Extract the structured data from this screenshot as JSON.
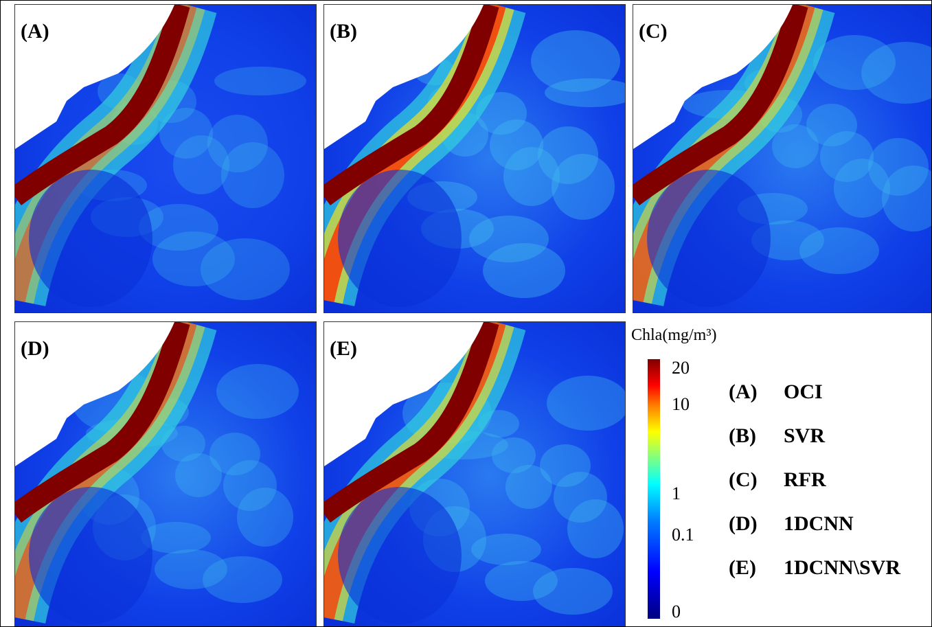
{
  "panels": [
    {
      "label": "(A)",
      "name": "OCI"
    },
    {
      "label": "(B)",
      "name": "SVR"
    },
    {
      "label": "(C)",
      "name": "RFR"
    },
    {
      "label": "(D)",
      "name": "1DCNN"
    },
    {
      "label": "(E)",
      "name": "1DCNN\\SVR"
    }
  ],
  "colorbar": {
    "title": "Chla(mg/m³)",
    "ticks": [
      20,
      10,
      1,
      0.1,
      0
    ]
  }
}
